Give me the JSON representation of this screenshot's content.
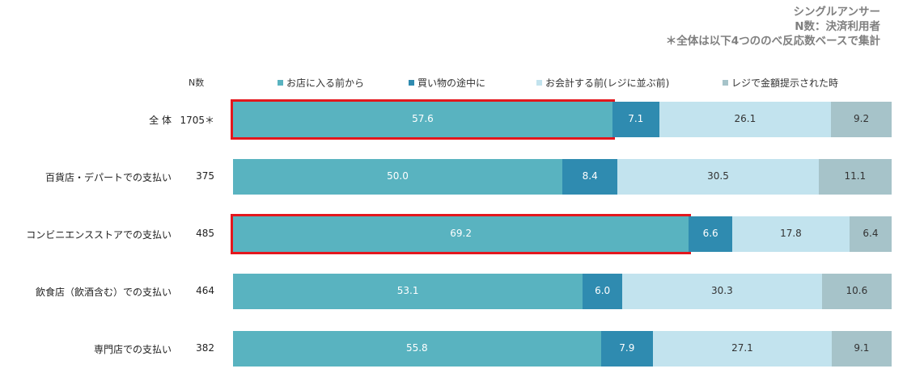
{
  "notes": [
    "シングルアンサー",
    "N数：決済利用者",
    "＊全体は以下4つののべ反応数ベースで集計"
  ],
  "chart_data": {
    "type": "bar",
    "orientation": "horizontal-stacked-100",
    "n_header": "N数",
    "colors": [
      "#59b3c0",
      "#2f8bb0",
      "#c2e3ee",
      "#a6c3c9"
    ],
    "series": [
      {
        "name": "お店に入る前から"
      },
      {
        "name": "買い物の途中に"
      },
      {
        "name": "お会計する前(レジに並ぶ前)"
      },
      {
        "name": "レジで金額提示された時"
      }
    ],
    "rows": [
      {
        "label": "全 体",
        "n": "1705＊",
        "values": [
          57.6,
          7.1,
          26.1,
          9.2
        ],
        "highlight_first": true
      },
      {
        "label": "百貨店・デパートでの支払い",
        "n": "375",
        "values": [
          50.0,
          8.4,
          30.5,
          11.1
        ],
        "highlight_first": false
      },
      {
        "label": "コンビニエンスストアでの支払い",
        "n": "485",
        "values": [
          69.2,
          6.6,
          17.8,
          6.4
        ],
        "highlight_first": true
      },
      {
        "label": "飲食店（飲酒含む）での支払い",
        "n": "464",
        "values": [
          53.1,
          6.0,
          30.3,
          10.6
        ],
        "highlight_first": false
      },
      {
        "label": "専門店での支払い",
        "n": "382",
        "values": [
          55.8,
          7.9,
          27.1,
          9.1
        ],
        "highlight_first": false
      }
    ],
    "highlight_color": "#e3171d"
  }
}
